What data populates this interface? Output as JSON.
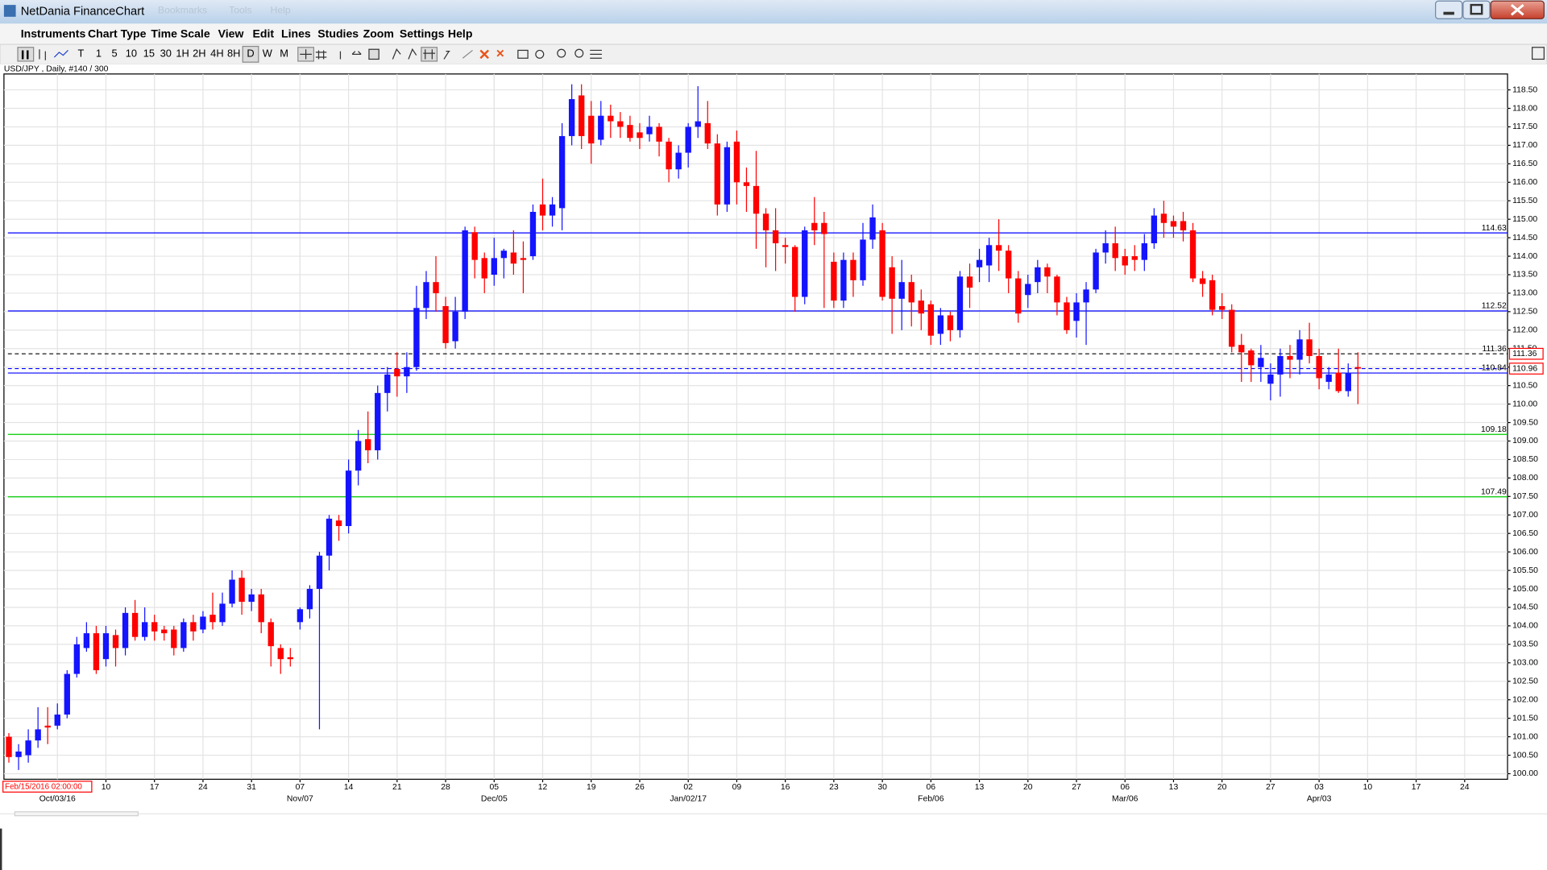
{
  "window": {
    "title": "NetDania FinanceChart",
    "hidden_menu": [
      "Bookmarks",
      "Tools",
      "Help"
    ]
  },
  "menu": [
    "Instruments",
    "Chart Type",
    "Time Scale",
    "View",
    "Edit",
    "Lines",
    "Studies",
    "Zoom",
    "Settings",
    "Help"
  ],
  "toolbar": [
    "T",
    "1",
    "5",
    "10",
    "15",
    "30",
    "1H",
    "2H",
    "4H",
    "8H",
    "D",
    "W",
    "M"
  ],
  "chart_data": {
    "type": "candlestick",
    "title": "USD/JPY , Daily, #140 / 300",
    "cursor_label": "Feb/15/2016 02:00:00",
    "up_color": "#1414ff",
    "down_color": "#ff0000",
    "grid": true,
    "x": [
      "2016-09-26",
      "2016-09-27",
      "2016-09-28",
      "2016-09-29",
      "2016-09-30",
      "2016-10-03",
      "2016-10-04",
      "2016-10-05",
      "2016-10-06",
      "2016-10-07",
      "2016-10-10",
      "2016-10-11",
      "2016-10-12",
      "2016-10-13",
      "2016-10-14",
      "2016-10-17",
      "2016-10-18",
      "2016-10-19",
      "2016-10-20",
      "2016-10-21",
      "2016-10-24",
      "2016-10-25",
      "2016-10-26",
      "2016-10-27",
      "2016-10-28",
      "2016-10-31",
      "2016-11-01",
      "2016-11-02",
      "2016-11-03",
      "2016-11-04",
      "2016-11-07",
      "2016-11-08",
      "2016-11-09",
      "2016-11-10",
      "2016-11-11",
      "2016-11-14",
      "2016-11-15",
      "2016-11-16",
      "2016-11-17",
      "2016-11-18",
      "2016-11-21",
      "2016-11-22",
      "2016-11-23",
      "2016-11-24",
      "2016-11-25",
      "2016-11-28",
      "2016-11-29",
      "2016-11-30",
      "2016-12-01",
      "2016-12-02",
      "2016-12-05",
      "2016-12-06",
      "2016-12-07",
      "2016-12-08",
      "2016-12-09",
      "2016-12-12",
      "2016-12-13",
      "2016-12-14",
      "2016-12-15",
      "2016-12-16",
      "2016-12-19",
      "2016-12-20",
      "2016-12-21",
      "2016-12-22",
      "2016-12-23",
      "2016-12-26",
      "2016-12-27",
      "2016-12-28",
      "2016-12-29",
      "2016-12-30",
      "2017-01-02",
      "2017-01-03",
      "2017-01-04",
      "2017-01-05",
      "2017-01-06",
      "2017-01-09",
      "2017-01-10",
      "2017-01-11",
      "2017-01-12",
      "2017-01-13",
      "2017-01-16",
      "2017-01-17",
      "2017-01-18",
      "2017-01-19",
      "2017-01-20",
      "2017-01-23",
      "2017-01-24",
      "2017-01-25",
      "2017-01-26",
      "2017-01-27",
      "2017-01-30",
      "2017-01-31",
      "2017-02-01",
      "2017-02-02",
      "2017-02-03",
      "2017-02-06",
      "2017-02-07",
      "2017-02-08",
      "2017-02-09",
      "2017-02-10",
      "2017-02-13",
      "2017-02-14",
      "2017-02-15",
      "2017-02-16",
      "2017-02-17",
      "2017-02-20",
      "2017-02-21",
      "2017-02-22",
      "2017-02-23",
      "2017-02-24",
      "2017-02-27",
      "2017-02-28",
      "2017-03-01",
      "2017-03-02",
      "2017-03-03",
      "2017-03-06",
      "2017-03-07",
      "2017-03-08",
      "2017-03-09",
      "2017-03-10",
      "2017-03-13",
      "2017-03-14",
      "2017-03-15",
      "2017-03-16",
      "2017-03-17",
      "2017-03-20",
      "2017-03-21",
      "2017-03-22",
      "2017-03-23",
      "2017-03-24",
      "2017-03-27",
      "2017-03-28",
      "2017-03-29",
      "2017-03-30",
      "2017-03-31",
      "2017-04-03",
      "2017-04-04",
      "2017-04-05",
      "2017-04-06",
      "2017-04-07"
    ],
    "open": [
      101.0,
      100.45,
      100.5,
      100.9,
      101.3,
      101.3,
      101.6,
      102.7,
      103.4,
      103.8,
      103.1,
      103.75,
      103.4,
      104.35,
      103.7,
      104.1,
      103.9,
      103.9,
      103.4,
      104.1,
      103.9,
      104.3,
      104.1,
      104.6,
      105.3,
      104.65,
      104.85,
      104.1,
      103.4,
      103.15,
      104.1,
      104.45,
      105.0,
      105.9,
      106.85,
      106.7,
      108.2,
      109.05,
      108.75,
      110.3,
      110.95,
      110.75,
      111.0,
      112.6,
      113.3,
      112.65,
      111.7,
      112.5,
      114.65,
      113.95,
      113.5,
      113.95,
      114.1,
      113.95,
      114.0,
      115.4,
      115.1,
      115.3,
      117.25,
      118.35,
      117.8,
      117.15,
      117.8,
      117.65,
      117.55,
      117.35,
      117.3,
      117.5,
      117.1,
      116.35,
      116.8,
      117.5,
      117.6,
      117.05,
      115.4,
      117.1,
      116.0,
      115.9,
      115.15,
      114.7,
      114.3,
      114.25,
      112.9,
      114.9,
      114.9,
      113.85,
      112.8,
      113.9,
      113.35,
      114.45,
      114.7,
      113.7,
      112.85,
      113.3,
      112.8,
      112.7,
      111.9,
      112.4,
      112.0,
      113.45,
      113.7,
      113.75,
      114.3,
      114.15,
      113.4,
      112.95,
      113.3,
      113.7,
      113.45,
      112.75,
      112.25,
      112.75,
      113.1,
      114.1,
      114.35,
      114.0,
      114.0,
      113.9,
      114.35,
      115.15,
      114.95,
      114.95,
      114.7,
      113.4,
      113.35,
      112.65,
      112.55,
      111.6,
      111.45,
      111.0,
      110.55,
      110.8,
      111.3,
      111.2,
      111.75,
      111.3,
      110.6,
      110.85,
      110.35,
      111.0
    ],
    "high": [
      101.1,
      100.8,
      101.2,
      101.8,
      101.8,
      101.9,
      102.8,
      103.7,
      104.1,
      104.0,
      104.0,
      103.9,
      104.5,
      104.7,
      104.5,
      104.3,
      104.0,
      104.0,
      104.2,
      104.3,
      104.4,
      104.9,
      104.9,
      105.5,
      105.5,
      105.0,
      105.0,
      104.2,
      103.5,
      103.4,
      104.5,
      105.1,
      106.0,
      107.0,
      107.0,
      108.5,
      109.3,
      109.8,
      110.5,
      111.0,
      111.4,
      111.4,
      113.2,
      113.6,
      114.0,
      112.9,
      112.9,
      114.8,
      114.8,
      114.1,
      114.5,
      114.2,
      114.7,
      114.4,
      115.4,
      116.1,
      115.6,
      117.6,
      118.65,
      118.65,
      118.2,
      118.2,
      118.1,
      117.9,
      117.8,
      117.6,
      117.8,
      117.6,
      117.2,
      117.0,
      117.6,
      118.6,
      118.2,
      117.3,
      117.1,
      117.4,
      116.4,
      116.85,
      115.3,
      115.3,
      114.5,
      114.3,
      114.8,
      115.6,
      115.2,
      114.1,
      114.1,
      114.1,
      114.9,
      115.4,
      114.9,
      114.0,
      113.9,
      113.5,
      113.1,
      112.8,
      112.6,
      112.5,
      113.6,
      113.8,
      114.2,
      114.5,
      115.0,
      114.3,
      113.6,
      113.5,
      113.9,
      113.8,
      113.5,
      112.9,
      113.0,
      113.3,
      114.2,
      114.7,
      114.8,
      114.2,
      114.3,
      114.6,
      115.3,
      115.5,
      115.1,
      115.2,
      114.9,
      113.6,
      113.5,
      113.0,
      112.7,
      111.9,
      111.5,
      111.6,
      111.1,
      111.5,
      111.6,
      112.0,
      112.2,
      111.5,
      111.0,
      111.5,
      111.1,
      111.4
    ],
    "low": [
      100.3,
      100.1,
      100.3,
      100.7,
      100.8,
      101.2,
      101.5,
      102.6,
      103.3,
      102.7,
      102.9,
      102.9,
      103.2,
      103.6,
      103.6,
      103.6,
      103.6,
      103.2,
      103.3,
      103.6,
      103.8,
      103.9,
      104.0,
      104.5,
      104.3,
      104.4,
      103.8,
      102.9,
      102.7,
      102.9,
      103.9,
      104.2,
      101.2,
      105.5,
      106.3,
      106.5,
      107.8,
      108.4,
      108.5,
      109.8,
      110.2,
      110.3,
      110.9,
      112.3,
      112.5,
      111.5,
      111.5,
      112.3,
      113.4,
      113.0,
      113.2,
      113.4,
      113.5,
      113.0,
      113.9,
      114.7,
      114.8,
      114.7,
      117.0,
      116.9,
      116.5,
      117.0,
      117.2,
      117.2,
      117.1,
      116.9,
      117.1,
      116.7,
      116.0,
      116.1,
      116.4,
      117.2,
      116.9,
      115.1,
      115.2,
      115.4,
      115.2,
      114.2,
      113.7,
      113.6,
      113.8,
      112.5,
      112.7,
      114.3,
      112.6,
      112.6,
      112.6,
      112.9,
      113.2,
      114.2,
      112.8,
      111.9,
      112.0,
      112.1,
      112.0,
      111.6,
      111.6,
      111.7,
      111.8,
      112.6,
      113.3,
      113.3,
      113.6,
      113.0,
      112.2,
      112.6,
      113.0,
      113.0,
      112.4,
      111.9,
      111.8,
      111.6,
      113.0,
      113.8,
      113.6,
      113.5,
      113.6,
      113.6,
      114.2,
      114.5,
      114.5,
      114.4,
      113.3,
      112.9,
      112.4,
      112.3,
      111.4,
      110.6,
      110.6,
      110.6,
      110.1,
      110.2,
      110.7,
      110.8,
      111.1,
      110.4,
      110.4,
      110.3,
      110.2,
      110.0
    ],
    "close": [
      100.45,
      100.6,
      100.9,
      101.2,
      101.25,
      101.6,
      102.7,
      103.5,
      103.8,
      102.8,
      103.8,
      103.4,
      104.35,
      103.7,
      104.1,
      103.85,
      103.8,
      103.4,
      104.1,
      103.85,
      104.25,
      104.1,
      104.6,
      105.25,
      104.65,
      104.85,
      104.1,
      103.45,
      103.1,
      103.1,
      104.45,
      105.0,
      105.9,
      106.9,
      106.7,
      108.2,
      109.0,
      108.75,
      110.3,
      110.8,
      110.75,
      111.0,
      112.6,
      113.3,
      113.0,
      111.65,
      112.5,
      114.7,
      113.9,
      113.4,
      113.95,
      114.15,
      113.8,
      113.9,
      115.2,
      115.1,
      115.4,
      117.25,
      118.25,
      117.25,
      117.05,
      117.8,
      117.65,
      117.5,
      117.2,
      117.2,
      117.5,
      117.1,
      116.35,
      116.8,
      117.5,
      117.65,
      117.05,
      115.4,
      116.95,
      116.0,
      115.9,
      115.15,
      114.7,
      114.35,
      114.25,
      112.9,
      114.7,
      114.7,
      114.6,
      112.8,
      113.9,
      113.35,
      114.45,
      115.05,
      112.9,
      112.85,
      113.3,
      112.75,
      112.45,
      111.85,
      112.4,
      112.0,
      113.45,
      113.15,
      113.9,
      114.3,
      114.15,
      113.4,
      112.45,
      113.25,
      113.7,
      113.45,
      112.75,
      112.0,
      112.75,
      113.1,
      114.1,
      114.35,
      113.95,
      113.75,
      113.9,
      114.35,
      115.1,
      114.9,
      114.8,
      114.7,
      113.4,
      113.25,
      112.55,
      112.55,
      111.55,
      111.4,
      111.05,
      111.25,
      110.8,
      111.3,
      111.2,
      111.75,
      111.3,
      110.7,
      110.8,
      110.35,
      110.85,
      110.96
    ],
    "ylim": [
      99.85,
      118.93
    ],
    "yticks": [
      {
        "value": 100,
        "label": "100.00"
      },
      {
        "value": 100.5,
        "label": "100.50"
      },
      {
        "value": 101,
        "label": "101.00"
      },
      {
        "value": 101.5,
        "label": "101.50"
      },
      {
        "value": 102,
        "label": "102.00"
      },
      {
        "value": 102.5,
        "label": "102.50"
      },
      {
        "value": 103,
        "label": "103.00"
      },
      {
        "value": 103.5,
        "label": "103.50"
      },
      {
        "value": 104,
        "label": "104.00"
      },
      {
        "value": 104.5,
        "label": "104.50"
      },
      {
        "value": 105,
        "label": "105.00"
      },
      {
        "value": 105.5,
        "label": "105.50"
      },
      {
        "value": 106,
        "label": "106.00"
      },
      {
        "value": 106.5,
        "label": "106.50"
      },
      {
        "value": 107,
        "label": "107.00"
      },
      {
        "value": 107.5,
        "label": "107.50"
      },
      {
        "value": 108,
        "label": "108.00"
      },
      {
        "value": 108.5,
        "label": "108.50"
      },
      {
        "value": 109,
        "label": "109.00"
      },
      {
        "value": 109.5,
        "label": "109.50"
      },
      {
        "value": 110,
        "label": "110.00"
      },
      {
        "value": 110.5,
        "label": "110.50"
      },
      {
        "value": 111,
        "label": "111.00"
      },
      {
        "value": 111.5,
        "label": "111.50"
      },
      {
        "value": 112,
        "label": "112.00"
      },
      {
        "value": 112.5,
        "label": "112.50"
      },
      {
        "value": 113,
        "label": "113.00"
      },
      {
        "value": 113.5,
        "label": "113.50"
      },
      {
        "value": 114,
        "label": "114.00"
      },
      {
        "value": 114.5,
        "label": "114.50"
      },
      {
        "value": 115,
        "label": "115.00"
      },
      {
        "value": 115.5,
        "label": "115.50"
      },
      {
        "value": 116,
        "label": "116.00"
      },
      {
        "value": 116.5,
        "label": "116.50"
      },
      {
        "value": 117,
        "label": "117.00"
      },
      {
        "value": 117.5,
        "label": "117.50"
      },
      {
        "value": 118,
        "label": "118.00"
      },
      {
        "value": 118.5,
        "label": "118.50"
      }
    ],
    "xticks": [
      {
        "value": "2016-10-10",
        "label": "10"
      },
      {
        "value": "2016-10-17",
        "label": "17"
      },
      {
        "value": "2016-10-24",
        "label": "24"
      },
      {
        "value": "2016-10-31",
        "label": "31"
      },
      {
        "value": "2016-11-07",
        "label": "07"
      },
      {
        "value": "2016-11-14",
        "label": "14"
      },
      {
        "value": "2016-11-21",
        "label": "21"
      },
      {
        "value": "2016-11-28",
        "label": "28"
      },
      {
        "value": "2016-12-05",
        "label": "05"
      },
      {
        "value": "2016-12-12",
        "label": "12"
      },
      {
        "value": "2016-12-19",
        "label": "19"
      },
      {
        "value": "2016-12-26",
        "label": "26"
      },
      {
        "value": "2017-01-02",
        "label": "02"
      },
      {
        "value": "2017-01-09",
        "label": "09"
      },
      {
        "value": "2017-01-16",
        "label": "16"
      },
      {
        "value": "2017-01-23",
        "label": "23"
      },
      {
        "value": "2017-01-30",
        "label": "30"
      },
      {
        "value": "2017-02-06",
        "label": "06"
      },
      {
        "value": "2017-02-13",
        "label": "13"
      },
      {
        "value": "2017-02-20",
        "label": "20"
      },
      {
        "value": "2017-02-27",
        "label": "27"
      },
      {
        "value": "2017-03-06",
        "label": "06"
      },
      {
        "value": "2017-03-13",
        "label": "13"
      },
      {
        "value": "2017-03-20",
        "label": "20"
      },
      {
        "value": "2017-03-27",
        "label": "27"
      },
      {
        "value": "2017-04-03",
        "label": "03"
      },
      {
        "value": "2017-04-10",
        "label": "10"
      },
      {
        "value": "2017-04-17",
        "label": "17"
      },
      {
        "value": "2017-04-24",
        "label": "24"
      }
    ],
    "month_ticks": [
      {
        "value": "2016-10-03",
        "label": "Oct/03/16"
      },
      {
        "value": "2016-11-07",
        "label": "Nov/07"
      },
      {
        "value": "2016-12-05",
        "label": "Dec/05"
      },
      {
        "value": "2017-01-02",
        "label": "Jan/02/17"
      },
      {
        "value": "2017-02-06",
        "label": "Feb/06"
      },
      {
        "value": "2017-03-06",
        "label": "Mar/06"
      },
      {
        "value": "2017-04-03",
        "label": "Apr/03"
      }
    ],
    "levels": [
      {
        "value": 114.63,
        "color": "#0000ff"
      },
      {
        "value": 112.52,
        "color": "#0000ff"
      },
      {
        "value": 111.36,
        "color": "#000000",
        "dashed": true,
        "axis_box": true
      },
      {
        "value": 110.96,
        "color": "#0000ff",
        "dashed": true,
        "axis_box": true,
        "line_label": false
      },
      {
        "value": 110.84,
        "color": "#0000ff"
      },
      {
        "value": 109.18,
        "color": "#00cc00"
      },
      {
        "value": 107.49,
        "color": "#00cc00"
      }
    ]
  }
}
